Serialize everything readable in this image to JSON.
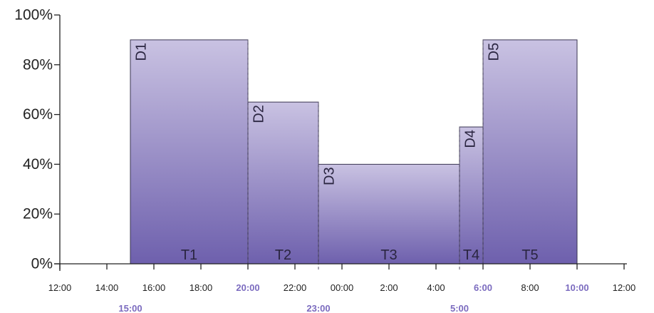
{
  "chart_data": {
    "type": "bar",
    "title": "",
    "xlabel": "",
    "ylabel": "",
    "ylim": [
      0,
      100
    ],
    "y_ticks": [
      "0%",
      "20%",
      "40%",
      "60%",
      "80%",
      "100%"
    ],
    "x_ticks": [
      {
        "label": "12:00",
        "h": 0,
        "highlight": false
      },
      {
        "label": "14:00",
        "h": 2,
        "highlight": false
      },
      {
        "label": "16:00",
        "h": 4,
        "highlight": false
      },
      {
        "label": "18:00",
        "h": 6,
        "highlight": false
      },
      {
        "label": "20:00",
        "h": 8,
        "highlight": true
      },
      {
        "label": "22:00",
        "h": 10,
        "highlight": false
      },
      {
        "label": "00:00",
        "h": 12,
        "highlight": false
      },
      {
        "label": "2:00",
        "h": 14,
        "highlight": false
      },
      {
        "label": "4:00",
        "h": 16,
        "highlight": false
      },
      {
        "label": "6:00",
        "h": 18,
        "highlight": true
      },
      {
        "label": "8:00",
        "h": 20,
        "highlight": false
      },
      {
        "label": "10:00",
        "h": 22,
        "highlight": true
      },
      {
        "label": "12:00",
        "h": 24,
        "highlight": false
      }
    ],
    "x_sub_labels": [
      {
        "label": "15:00",
        "h": 3
      },
      {
        "label": "23:00",
        "h": 11
      },
      {
        "label": "5:00",
        "h": 17
      }
    ],
    "blocks": [
      {
        "d": "D1",
        "t": "T1",
        "start": 3,
        "end": 8,
        "value": 90
      },
      {
        "d": "D2",
        "t": "T2",
        "start": 8,
        "end": 11,
        "value": 65
      },
      {
        "d": "D3",
        "t": "T3",
        "start": 11,
        "end": 17,
        "value": 40
      },
      {
        "d": "D4",
        "t": "T4",
        "start": 17,
        "end": 18,
        "value": 55
      },
      {
        "d": "D5",
        "t": "T5",
        "start": 18,
        "end": 22,
        "value": 90
      }
    ],
    "dashed_dividers": [
      8,
      11,
      17,
      18
    ],
    "colors": {
      "bar_top": "#c9c2e2",
      "bar_bottom": "#6e60ad",
      "highlight": "#7b6bbf"
    },
    "legend": "none",
    "grid": false
  }
}
